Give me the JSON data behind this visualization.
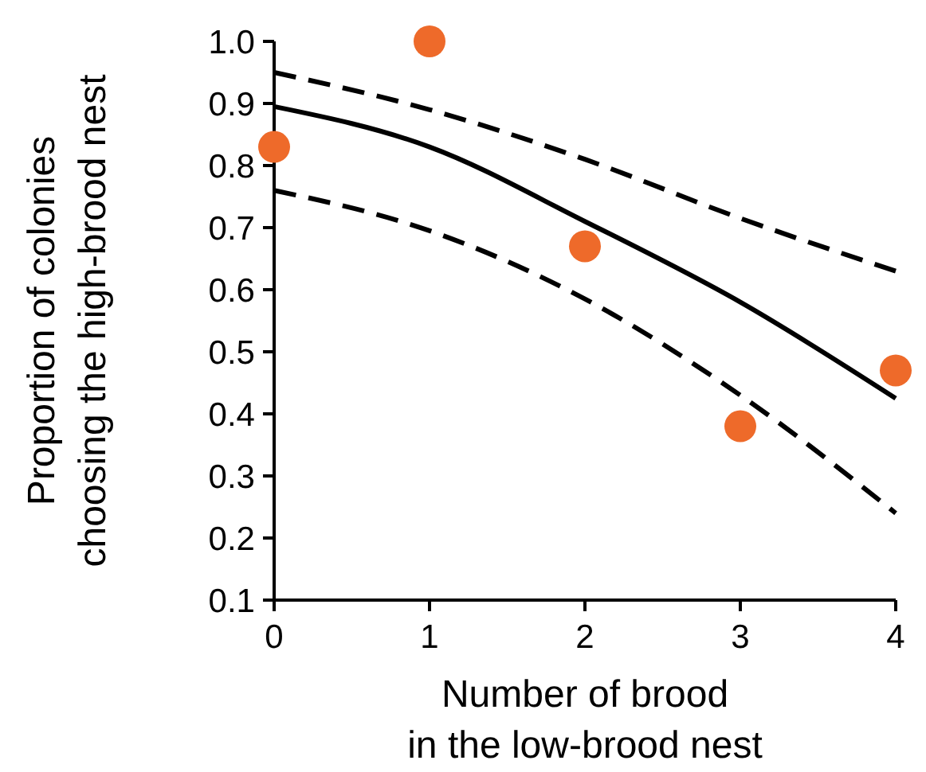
{
  "chart_data": {
    "type": "scatter",
    "xlabel": "Number of brood\nin the low-brood nest",
    "ylabel": "Proportion of colonies\nchoosing the high-brood nest",
    "xlim": [
      0,
      4
    ],
    "xticks": [
      0,
      1,
      2,
      3,
      4
    ],
    "ylim": [
      0.1,
      1.0
    ],
    "yticks": [
      {
        "value": 0.1,
        "label": "0.1"
      },
      {
        "value": 0.2,
        "label": "0.2"
      },
      {
        "value": 0.3,
        "label": "0.3"
      },
      {
        "value": 0.4,
        "label": "0.4"
      },
      {
        "value": 0.5,
        "label": "0.5"
      },
      {
        "value": 0.6,
        "label": "0.6"
      },
      {
        "value": 0.7,
        "label": "0.7"
      },
      {
        "value": 0.8,
        "label": "0.8"
      },
      {
        "value": 0.9,
        "label": "0.9"
      },
      {
        "value": 1.0,
        "label": "1.0"
      }
    ],
    "grid": false,
    "marker": "circle",
    "series": [
      {
        "type": "line",
        "marker": "none",
        "line_style": "solid",
        "color": "#000000",
        "x": [
          0,
          1,
          2,
          3,
          4
        ],
        "values": [
          0.895,
          0.83,
          0.71,
          0.58,
          0.425
        ]
      },
      {
        "type": "line",
        "marker": "none",
        "line_style": "dashed",
        "color": "#000000",
        "x": [
          0,
          1,
          2,
          3,
          4
        ],
        "values": [
          0.95,
          0.89,
          0.81,
          0.715,
          0.63
        ]
      },
      {
        "type": "line",
        "marker": "none",
        "line_style": "dashed",
        "color": "#000000",
        "x": [
          0,
          1,
          2,
          3,
          4
        ],
        "values": [
          0.76,
          0.695,
          0.585,
          0.43,
          0.24
        ]
      },
      {
        "color": "#ee6a2a",
        "x": [
          0,
          1,
          2,
          3,
          4
        ],
        "values": [
          0.83,
          1.0,
          0.67,
          0.38,
          0.47
        ]
      }
    ]
  }
}
